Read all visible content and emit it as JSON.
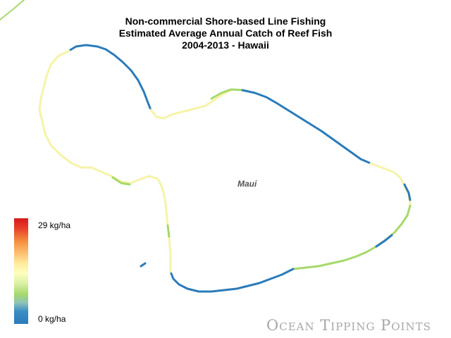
{
  "title": {
    "line1": "Non-commercial Shore-based Line Fishing",
    "line2": "Estimated Average Annual Catch of Reef Fish",
    "line3": "2004-2013 - Hawaii"
  },
  "map": {
    "island_label": "Maui"
  },
  "legend": {
    "max_label": "29 kg/ha",
    "min_label": "0 kg/ha",
    "colors": [
      "#d7191c",
      "#f4913f",
      "#ffffbf",
      "#a6d96a",
      "#2b7bba"
    ]
  },
  "logo": {
    "text": "Ocean Tipping Points"
  }
}
